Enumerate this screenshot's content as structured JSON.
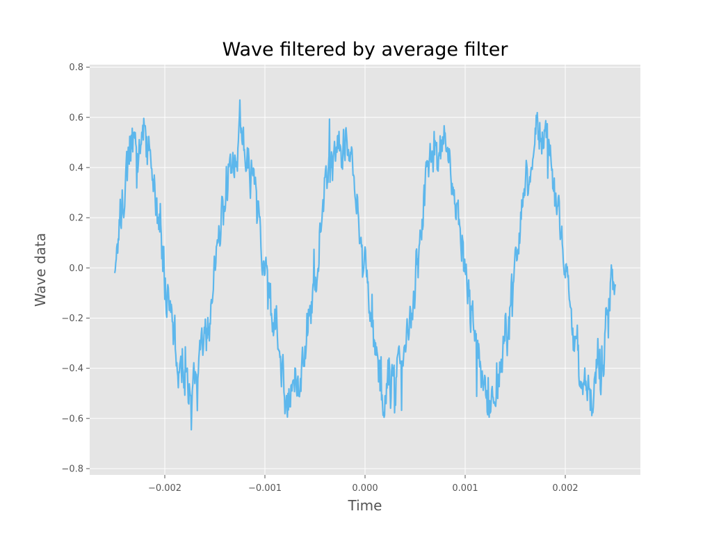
{
  "chart_data": {
    "type": "line",
    "title": "Wave filtered by average filter",
    "xlabel": "Time",
    "ylabel": "Wave data",
    "xlim": [
      -0.00275,
      0.00275
    ],
    "ylim": [
      -0.825,
      0.81
    ],
    "x_ticks": [
      -0.002,
      -0.001,
      0.0,
      0.001,
      0.002
    ],
    "x_tick_labels": [
      "−0.002",
      "−0.001",
      "0.000",
      "0.001",
      "0.002"
    ],
    "y_ticks": [
      -0.8,
      -0.6,
      -0.4,
      -0.2,
      0.0,
      0.2,
      0.4,
      0.6,
      0.8
    ],
    "y_tick_labels": [
      "−0.8",
      "−0.6",
      "−0.4",
      "−0.2",
      "0.0",
      "0.2",
      "0.4",
      "0.6",
      "0.8"
    ],
    "grid": true,
    "style": "ggplot",
    "series": [
      {
        "color": "#5DB7EC",
        "x_start": -0.0025,
        "x_end": 0.0025,
        "signal_frequency_hz": 1000,
        "signal_amplitude": 0.5,
        "signal_phase_rad": 3.1416,
        "noise_amplitude_approx": 0.1,
        "noise_seed": 7,
        "points": 1000
      }
    ]
  }
}
